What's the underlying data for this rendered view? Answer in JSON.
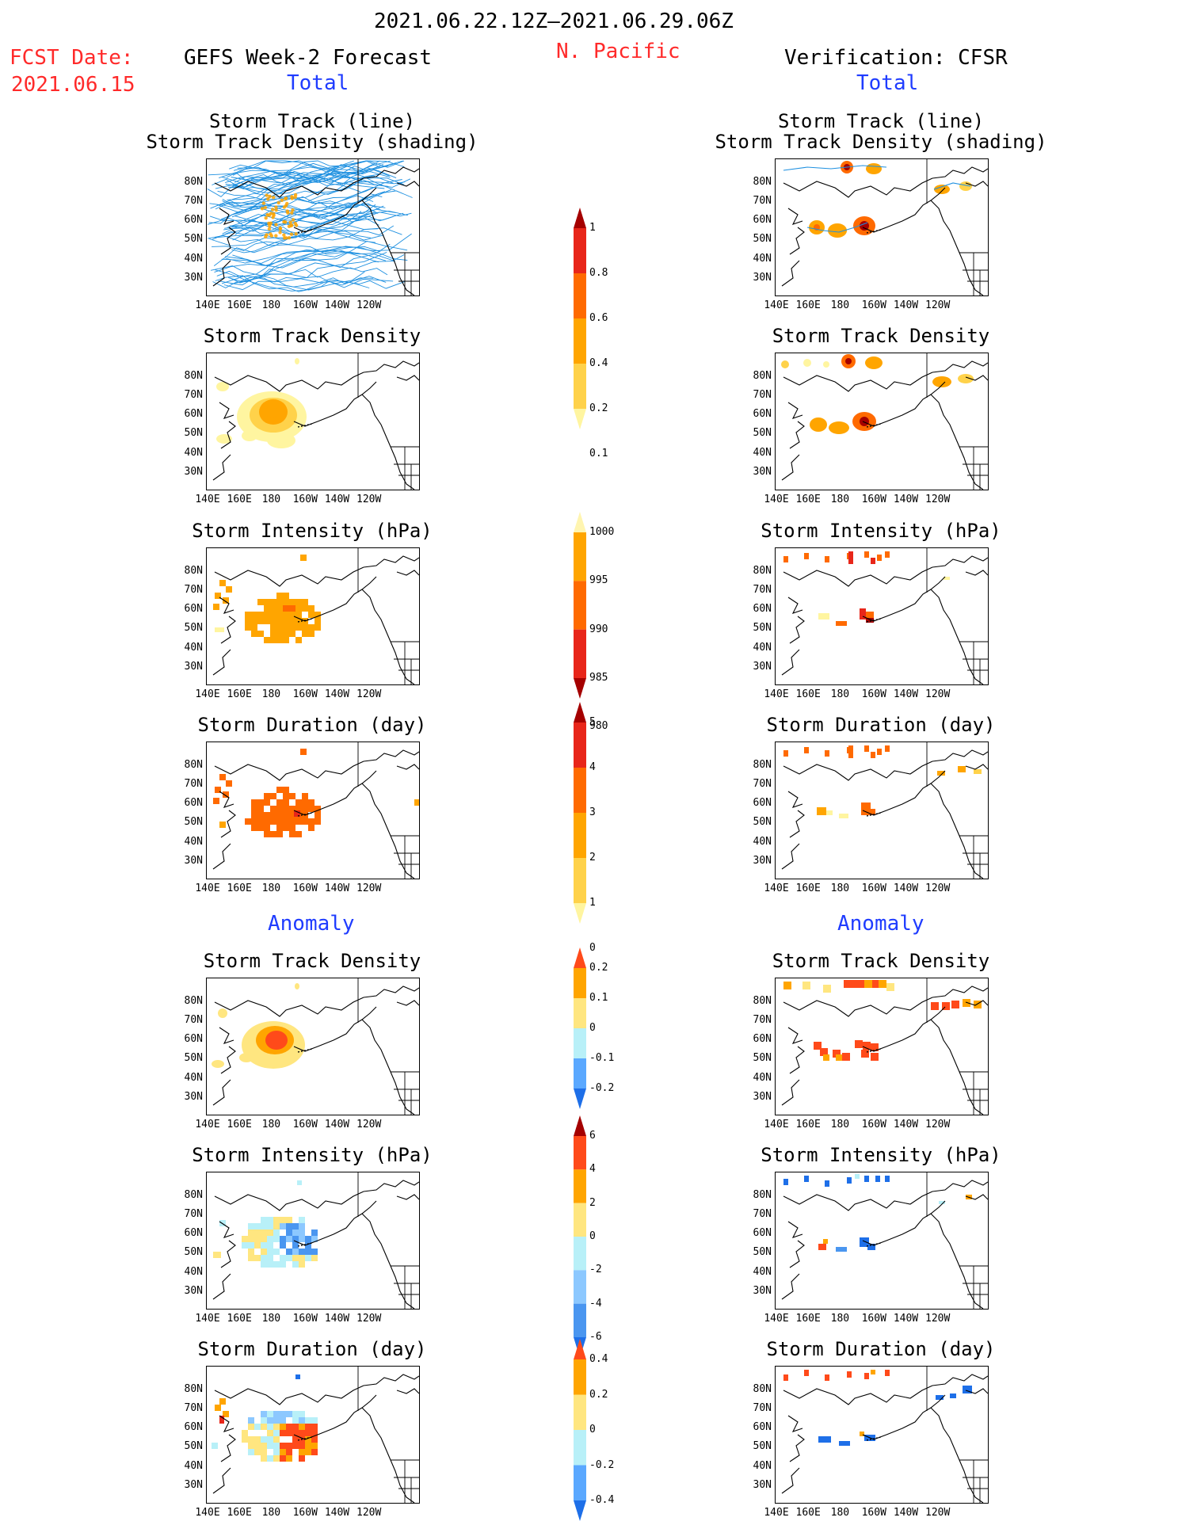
{
  "header": {
    "period": "2021.06.22.12Z–2021.06.29.06Z",
    "fcst_label": "FCST Date:",
    "fcst_date": "2021.06.15",
    "left_title": "GEFS Week-2 Forecast",
    "region": "N. Pacific",
    "right_title": "Verification: CFSR",
    "total_label": "Total",
    "anomaly_label": "Anomaly"
  },
  "axes": {
    "lat_labels": [
      "80N",
      "70N",
      "60N",
      "50N",
      "40N",
      "30N"
    ],
    "lon_labels": [
      "140E",
      "160E",
      "180",
      "160W",
      "140W",
      "120W"
    ]
  },
  "panel_titles": {
    "track": [
      "Storm Track (line)",
      "Storm Track Density (shading)"
    ],
    "density": "Storm Track Density",
    "intensity": "Storm Intensity (hPa)",
    "duration": "Storm Duration (day)"
  },
  "colorbars": {
    "density_total": {
      "labels": [
        "1",
        "0.8",
        "0.6",
        "0.4",
        "0.2",
        "0.1"
      ],
      "colors": [
        "#a50000",
        "#e8261a",
        "#ff6a00",
        "#ffa500",
        "#ffd24a",
        "#fff5a0"
      ]
    },
    "intensity_total": {
      "labels": [
        "1000",
        "995",
        "990",
        "985",
        "980"
      ],
      "colors": [
        "#fff5b0",
        "#ffa500",
        "#ff6a00",
        "#e8261a",
        "#a50000"
      ]
    },
    "duration_total": {
      "labels": [
        "5",
        "4",
        "3",
        "2",
        "1",
        "0"
      ],
      "colors": [
        "#a50000",
        "#e8261a",
        "#ff6a00",
        "#ffa500",
        "#ffd24a",
        "#fff5a0"
      ]
    },
    "density_anom": {
      "labels": [
        "0.2",
        "0.1",
        "0",
        "-0.1",
        "-0.2"
      ],
      "colors": [
        "#ff4a1a",
        "#ffa500",
        "#ffe680",
        "#b8f0f8",
        "#5aa8ff",
        "#1e6fe8"
      ]
    },
    "intensity_anom": {
      "labels": [
        "6",
        "4",
        "2",
        "0",
        "-2",
        "-4",
        "-6"
      ],
      "colors": [
        "#a50000",
        "#ff4a1a",
        "#ffa500",
        "#ffe680",
        "#b8f0f8",
        "#8cc8ff",
        "#4a96f0",
        "#1e6fe8"
      ]
    },
    "duration_anom": {
      "labels": [
        "0.4",
        "0.2",
        "0",
        "-0.2",
        "-0.4"
      ],
      "colors": [
        "#ff4a1a",
        "#ffa500",
        "#ffe680",
        "#b8f0f8",
        "#5aa8ff",
        "#1e6fe8"
      ]
    }
  }
}
